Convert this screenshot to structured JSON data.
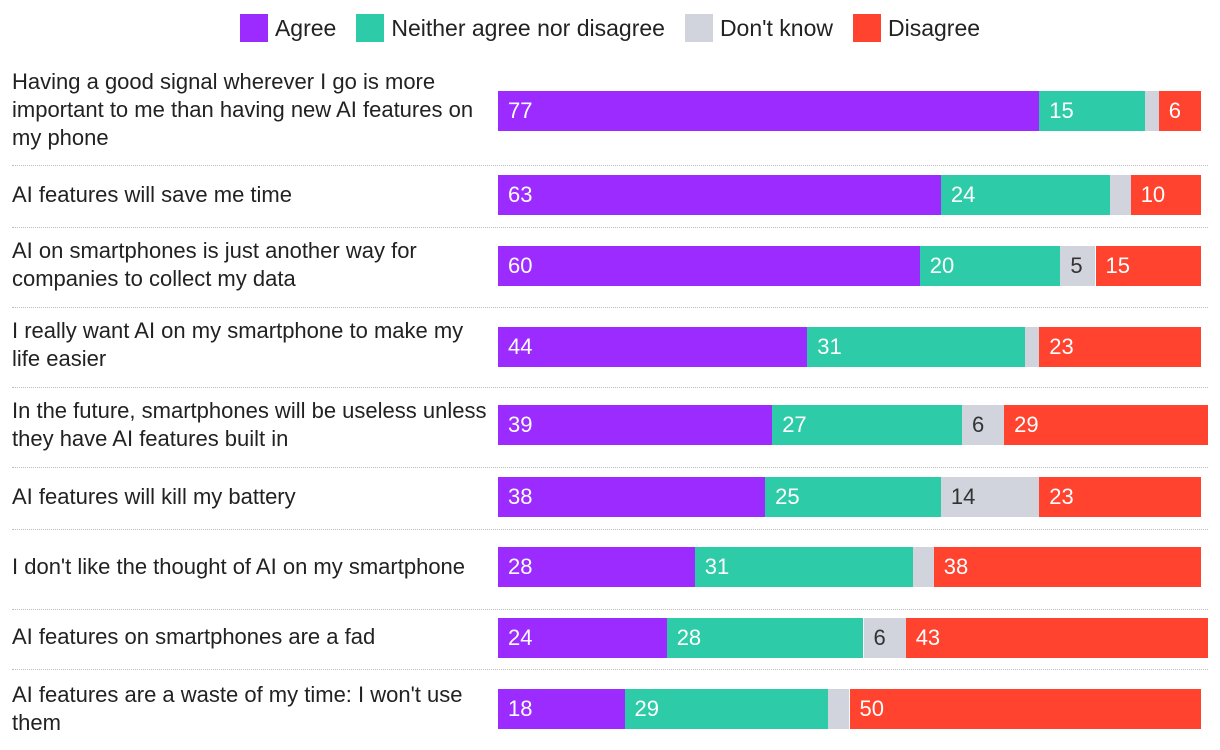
{
  "chart_data": {
    "type": "bar",
    "orientation": "horizontal",
    "stacked": true,
    "legend_position": "top-center",
    "series": [
      {
        "name": "Agree",
        "color": "#9b2bff"
      },
      {
        "name": "Neither agree nor disagree",
        "color": "#2ecba8"
      },
      {
        "name": "Don't know",
        "color": "#d1d4dc"
      },
      {
        "name": "Disagree",
        "color": "#ff432e"
      }
    ],
    "categories": [
      "Having a good signal wherever I go is more important to me than having new AI features on my phone",
      "AI features will save me time",
      "AI on smartphones is just another way for companies to collect my data",
      "I really want AI on my smartphone to make my life easier",
      "In the future, smartphones will be useless unless they have AI features built in",
      "AI features will kill my battery",
      "I don't like the thought of AI on my smartphone",
      "AI features on smartphones are a fad",
      "AI features are a waste of my time: I won't use them"
    ],
    "values": [
      [
        77,
        15,
        2,
        6
      ],
      [
        63,
        24,
        3,
        10
      ],
      [
        60,
        20,
        5,
        15
      ],
      [
        44,
        31,
        2,
        23
      ],
      [
        39,
        27,
        6,
        29
      ],
      [
        38,
        25,
        14,
        23
      ],
      [
        28,
        31,
        3,
        38
      ],
      [
        24,
        28,
        6,
        43
      ],
      [
        18,
        29,
        3,
        50
      ]
    ],
    "data_labels": [
      [
        "77",
        "15",
        "",
        "6"
      ],
      [
        "63",
        "24",
        "",
        "10"
      ],
      [
        "60",
        "20",
        "5",
        "15"
      ],
      [
        "44",
        "31",
        "",
        "23"
      ],
      [
        "39",
        "27",
        "6",
        "29"
      ],
      [
        "38",
        "25",
        "14",
        "23"
      ],
      [
        "28",
        "31",
        "",
        "38"
      ],
      [
        "24",
        "28",
        "6",
        "43"
      ],
      [
        "18",
        "29",
        "",
        "50"
      ]
    ],
    "xlim": [
      0,
      100
    ],
    "title": "",
    "xlabel": "",
    "ylabel": ""
  }
}
